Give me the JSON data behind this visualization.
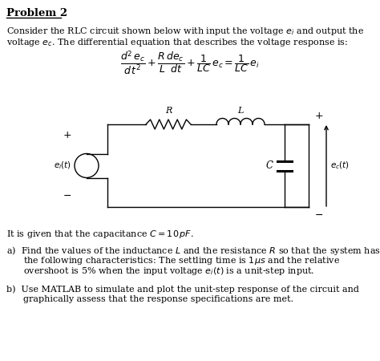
{
  "bg_color": "#ffffff",
  "text_color": "#000000",
  "title": "Problem 2",
  "intro1": "Consider the RLC circuit shown below with input the voltage $e_i$ and output the",
  "intro2": "voltage $e_c$. The differential equation that describes the voltage response is:",
  "given": "It is given that the capacitance $C = 10\\,pF$.",
  "part_a1": "a)  Find the values of the inductance $L$ and the resistance $R$ so that the system has",
  "part_a2": "      the following characteristics: The settling time is $1\\mu s$ and the relative",
  "part_a3": "      overshoot is 5% when the input voltage $e_i(t)$ is a unit-step input.",
  "part_b1": "b)  Use MATLAB to simulate and plot the unit-step response of the circuit and",
  "part_b2": "      graphically assess that the response specifications are met.",
  "figw": 4.74,
  "figh": 4.5,
  "dpi": 100
}
